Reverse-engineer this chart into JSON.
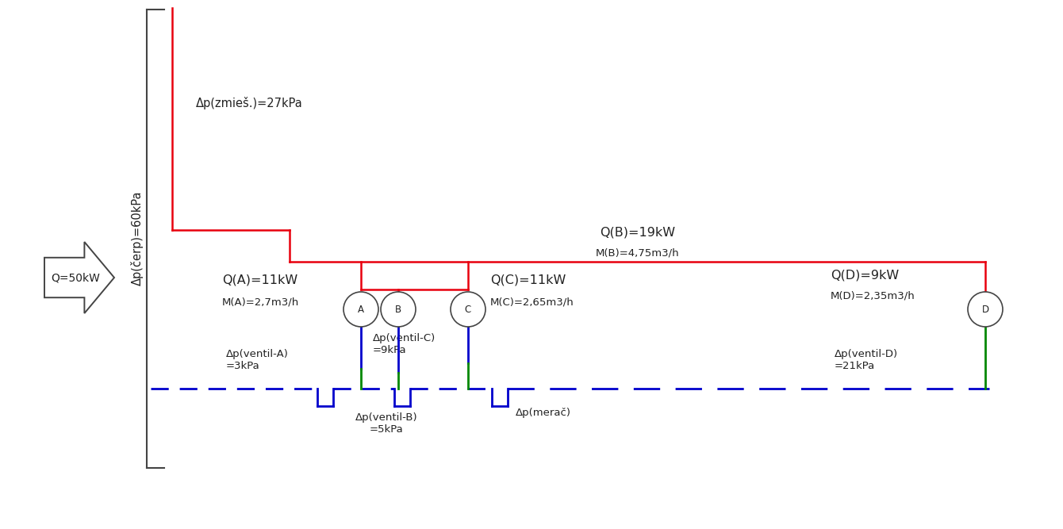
{
  "bg_color": "#ffffff",
  "red": "#e8000d",
  "blue": "#0000cc",
  "green": "#008800",
  "dark": "#444444",
  "tc": "#222222",
  "pump_arrow_label": "Q=50kW",
  "pump_label_rotated": "Δp(čerp)=60kPa",
  "label_zmies": "Δp(zmieš.)=27kPa",
  "label_QB": "Q(B)=19kW",
  "label_MB": "M(B)=4,75m3/h",
  "label_QA": "Q(A)=11kW",
  "label_MA": "M(A)=2,7m3/h",
  "label_QC": "Q(C)=11kW",
  "label_MC": "M(C)=2,65m3/h",
  "label_QD": "Q(D)=9kW",
  "label_MD": "M(D)=2,35m3/h",
  "label_ventA": "Δp(ventil-A)\n=3kPa",
  "label_ventB": "Δp(ventil-B)\n=5kPa",
  "label_ventC": "Δp(ventil-C)\n=9kPa",
  "label_ventD": "Δp(ventil-D)\n=21kPa",
  "label_merac": "Δp(merač)",
  "node_labels": [
    "A",
    "B",
    "C",
    "D"
  ],
  "figsize": [
    13.4,
    6.67
  ],
  "dpi": 100
}
